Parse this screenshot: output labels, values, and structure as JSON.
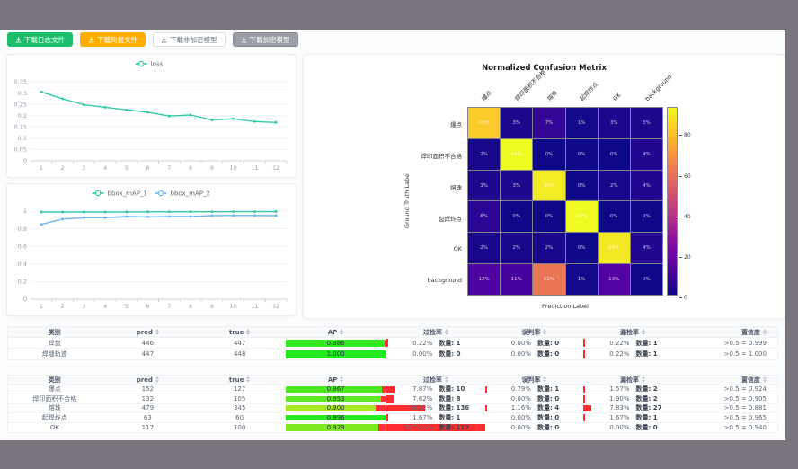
{
  "toolbar": {
    "buttons": [
      {
        "label": "下载日志文件",
        "style": "success",
        "icon": "download-icon"
      },
      {
        "label": "下载简报文件",
        "style": "warning",
        "icon": "download-icon"
      },
      {
        "label": "下载非加密模型",
        "style": "default",
        "icon": "download-icon"
      },
      {
        "label": "下载加密模型",
        "style": "dark",
        "icon": "download-icon"
      }
    ]
  },
  "chart_data": [
    {
      "id": "loss",
      "type": "line",
      "legend": [
        "loss"
      ],
      "legend_position": "top",
      "grid": true,
      "x": [
        1,
        2,
        3,
        4,
        5,
        6,
        7,
        8,
        9,
        10,
        11,
        12
      ],
      "series": [
        {
          "name": "loss",
          "color": "#34c9a8",
          "values": [
            0.305,
            0.275,
            0.248,
            0.237,
            0.226,
            0.215,
            0.198,
            0.203,
            0.181,
            0.186,
            0.174,
            0.17
          ]
        }
      ],
      "ylim": [
        0,
        0.35
      ],
      "ytick_step": 0.05,
      "xlabel": "",
      "ylabel": ""
    },
    {
      "id": "map",
      "type": "line",
      "legend": [
        "bbox_mAP_1",
        "bbox_mAP_2"
      ],
      "legend_position": "top",
      "grid": true,
      "x": [
        1,
        2,
        3,
        4,
        5,
        6,
        7,
        8,
        9,
        10,
        11,
        12
      ],
      "series": [
        {
          "name": "bbox_mAP_1",
          "color": "#34c9a8",
          "values": [
            0.99,
            0.989,
            0.99,
            0.989,
            0.991,
            0.992,
            0.992,
            0.993,
            0.993,
            0.994,
            0.994,
            0.995
          ]
        },
        {
          "name": "bbox_mAP_2",
          "color": "#6db6f2",
          "values": [
            0.85,
            0.91,
            0.926,
            0.925,
            0.939,
            0.935,
            0.939,
            0.939,
            0.949,
            0.951,
            0.951,
            0.949
          ]
        }
      ],
      "ylim": [
        0,
        1
      ],
      "ytick_step": 0.2,
      "xlabel": "",
      "ylabel": ""
    },
    {
      "id": "confusion",
      "type": "heatmap",
      "title": "Normalized Confusion Matrix",
      "xlabel": "Prediction Label",
      "ylabel": "Ground Truth Label",
      "labels": [
        "爆点",
        "焊印面积不合格",
        "熔珠",
        "起焊炸点",
        "OK",
        "background"
      ],
      "matrix_percent": [
        [
          83,
          3,
          7,
          1,
          3,
          3
        ],
        [
          2,
          93,
          0,
          0,
          0,
          4
        ],
        [
          3,
          3,
          90,
          0,
          2,
          4
        ],
        [
          6,
          0,
          0,
          93,
          0,
          0
        ],
        [
          2,
          2,
          2,
          0,
          89,
          4
        ],
        [
          12,
          11,
          61,
          1,
          13,
          0
        ]
      ],
      "colormap": "plasma",
      "colorbar_ticks": [
        0,
        20,
        40,
        60,
        80
      ],
      "vmin": 0,
      "vmax": 93
    }
  ],
  "table_headers": {
    "class": "类别",
    "pred": "pred",
    "true": "true",
    "ap": "AP",
    "over": "过检率",
    "mis": "误判率",
    "miss": "漏检率",
    "conf": "置信度"
  },
  "labels": {
    "count_label": "数量:"
  },
  "results_tables": [
    {
      "rows": [
        {
          "class": "焊盘",
          "pred": "446",
          "true": "447",
          "ap": "0.986",
          "over": {
            "pct": 0.22,
            "count": 1
          },
          "mis": {
            "pct": 0.0,
            "count": 0
          },
          "miss": {
            "pct": 0.22,
            "count": 1
          },
          "conf": ">0.5 = 0.999"
        },
        {
          "class": "焊缝轨迹",
          "pred": "447",
          "true": "448",
          "ap": "1.000",
          "over": {
            "pct": 0.0,
            "count": 0
          },
          "mis": {
            "pct": 0.0,
            "count": 0
          },
          "miss": {
            "pct": 0.22,
            "count": 1
          },
          "conf": ">0.5 = 1.000"
        }
      ]
    },
    {
      "rows": [
        {
          "class": "爆点",
          "pred": "152",
          "true": "127",
          "ap": "0.967",
          "over": {
            "pct": 7.87,
            "count": 10
          },
          "mis": {
            "pct": 0.79,
            "count": 1
          },
          "miss": {
            "pct": 1.57,
            "count": 2
          },
          "conf": ">0.5 = 0.924"
        },
        {
          "class": "焊印面积不合格",
          "pred": "132",
          "true": "105",
          "ap": "0.953",
          "over": {
            "pct": 7.62,
            "count": 8
          },
          "mis": {
            "pct": 0.0,
            "count": 0
          },
          "miss": {
            "pct": 1.9,
            "count": 2
          },
          "conf": ">0.5 = 0.905"
        },
        {
          "class": "熔珠",
          "pred": "479",
          "true": "345",
          "ap": "0.900",
          "over": {
            "pct": 39.42,
            "count": 136
          },
          "mis": {
            "pct": 1.16,
            "count": 4
          },
          "miss": {
            "pct": 7.83,
            "count": 27
          },
          "conf": ">0.5 = 0.881"
        },
        {
          "class": "起焊炸点",
          "pred": "63",
          "true": "60",
          "ap": "0.996",
          "over": {
            "pct": 1.67,
            "count": 1
          },
          "mis": {
            "pct": 0.0,
            "count": 0
          },
          "miss": {
            "pct": 1.67,
            "count": 1
          },
          "conf": ">0.5 = 0.965"
        },
        {
          "class": "OK",
          "pred": "117",
          "true": "100",
          "ap": "0.929",
          "over": {
            "pct": 117.0,
            "count": 117
          },
          "mis": {
            "pct": 0.0,
            "count": 0
          },
          "miss": {
            "pct": 0.0,
            "count": 0
          },
          "conf": ">0.5 = 0.940"
        }
      ]
    }
  ],
  "colors": {
    "frame": "#7a747f",
    "ap_remainder": "#ff3038",
    "rate_bar": "#ff2d30",
    "series_teal": "#34c9a8",
    "series_blue": "#6db6f2"
  }
}
